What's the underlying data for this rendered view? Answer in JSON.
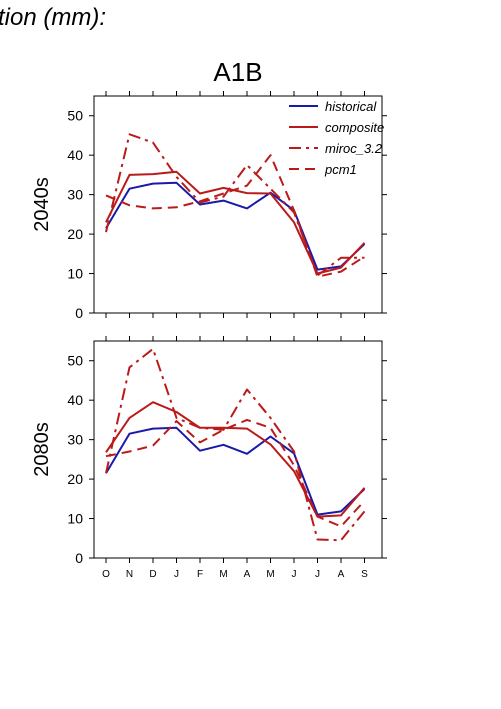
{
  "header": {
    "text": "tion (mm):"
  },
  "chart_data": {
    "type": "line",
    "title": "A1B",
    "categories": [
      "O",
      "N",
      "D",
      "J",
      "F",
      "M",
      "A",
      "M",
      "J",
      "J",
      "A",
      "S"
    ],
    "ylim": [
      0,
      55
    ],
    "yticks": [
      0,
      10,
      20,
      30,
      40,
      50
    ],
    "grid": false,
    "legend_position": "top-right",
    "legend": [
      {
        "name": "historical",
        "color": "#1a1aaa",
        "dash": "solid"
      },
      {
        "name": "composite",
        "color": "#bb1a1a",
        "dash": "solid"
      },
      {
        "name": "miroc_3.2",
        "color": "#bb1a1a",
        "dash": "dashdot"
      },
      {
        "name": "pcm1",
        "color": "#bb1a1a",
        "dash": "dashed"
      }
    ],
    "panels": [
      {
        "label": "2040s",
        "series": [
          {
            "name": "historical",
            "values": [
              21.5,
              31.5,
              32.8,
              33.0,
              27.5,
              28.5,
              26.5,
              30.5,
              26.0,
              11.0,
              11.8,
              17.5
            ]
          },
          {
            "name": "composite",
            "values": [
              23.0,
              35.0,
              35.2,
              35.8,
              30.3,
              31.7,
              30.4,
              30.3,
              23.0,
              10.0,
              11.5,
              17.8
            ]
          },
          {
            "name": "miroc_3.2",
            "values": [
              20.5,
              45.3,
              43.2,
              34.5,
              28.0,
              29.5,
              37.5,
              31.5,
              25.5,
              9.5,
              14.0,
              14.0
            ]
          },
          {
            "name": "pcm1",
            "values": [
              29.8,
              27.3,
              26.5,
              26.8,
              28.3,
              30.3,
              32.3,
              40.0,
              26.0,
              9.2,
              10.5,
              14.3
            ]
          }
        ]
      },
      {
        "label": "2080s",
        "series": [
          {
            "name": "historical",
            "values": [
              21.5,
              31.5,
              32.8,
              33.0,
              27.2,
              28.7,
              26.4,
              30.8,
              26.5,
              11.0,
              11.8,
              17.5
            ]
          },
          {
            "name": "composite",
            "values": [
              26.8,
              35.5,
              39.5,
              37.0,
              33.0,
              33.0,
              32.8,
              28.8,
              22.0,
              10.5,
              10.8,
              17.8
            ]
          },
          {
            "name": "miroc_3.2",
            "values": [
              21.5,
              48.3,
              53.0,
              35.5,
              33.0,
              32.5,
              42.7,
              35.5,
              27.0,
              4.7,
              4.5,
              11.8
            ]
          },
          {
            "name": "pcm1",
            "values": [
              25.8,
              27.0,
              28.5,
              34.7,
              29.3,
              32.5,
              35.0,
              33.0,
              23.5,
              10.5,
              8.0,
              14.5
            ]
          }
        ]
      }
    ]
  }
}
